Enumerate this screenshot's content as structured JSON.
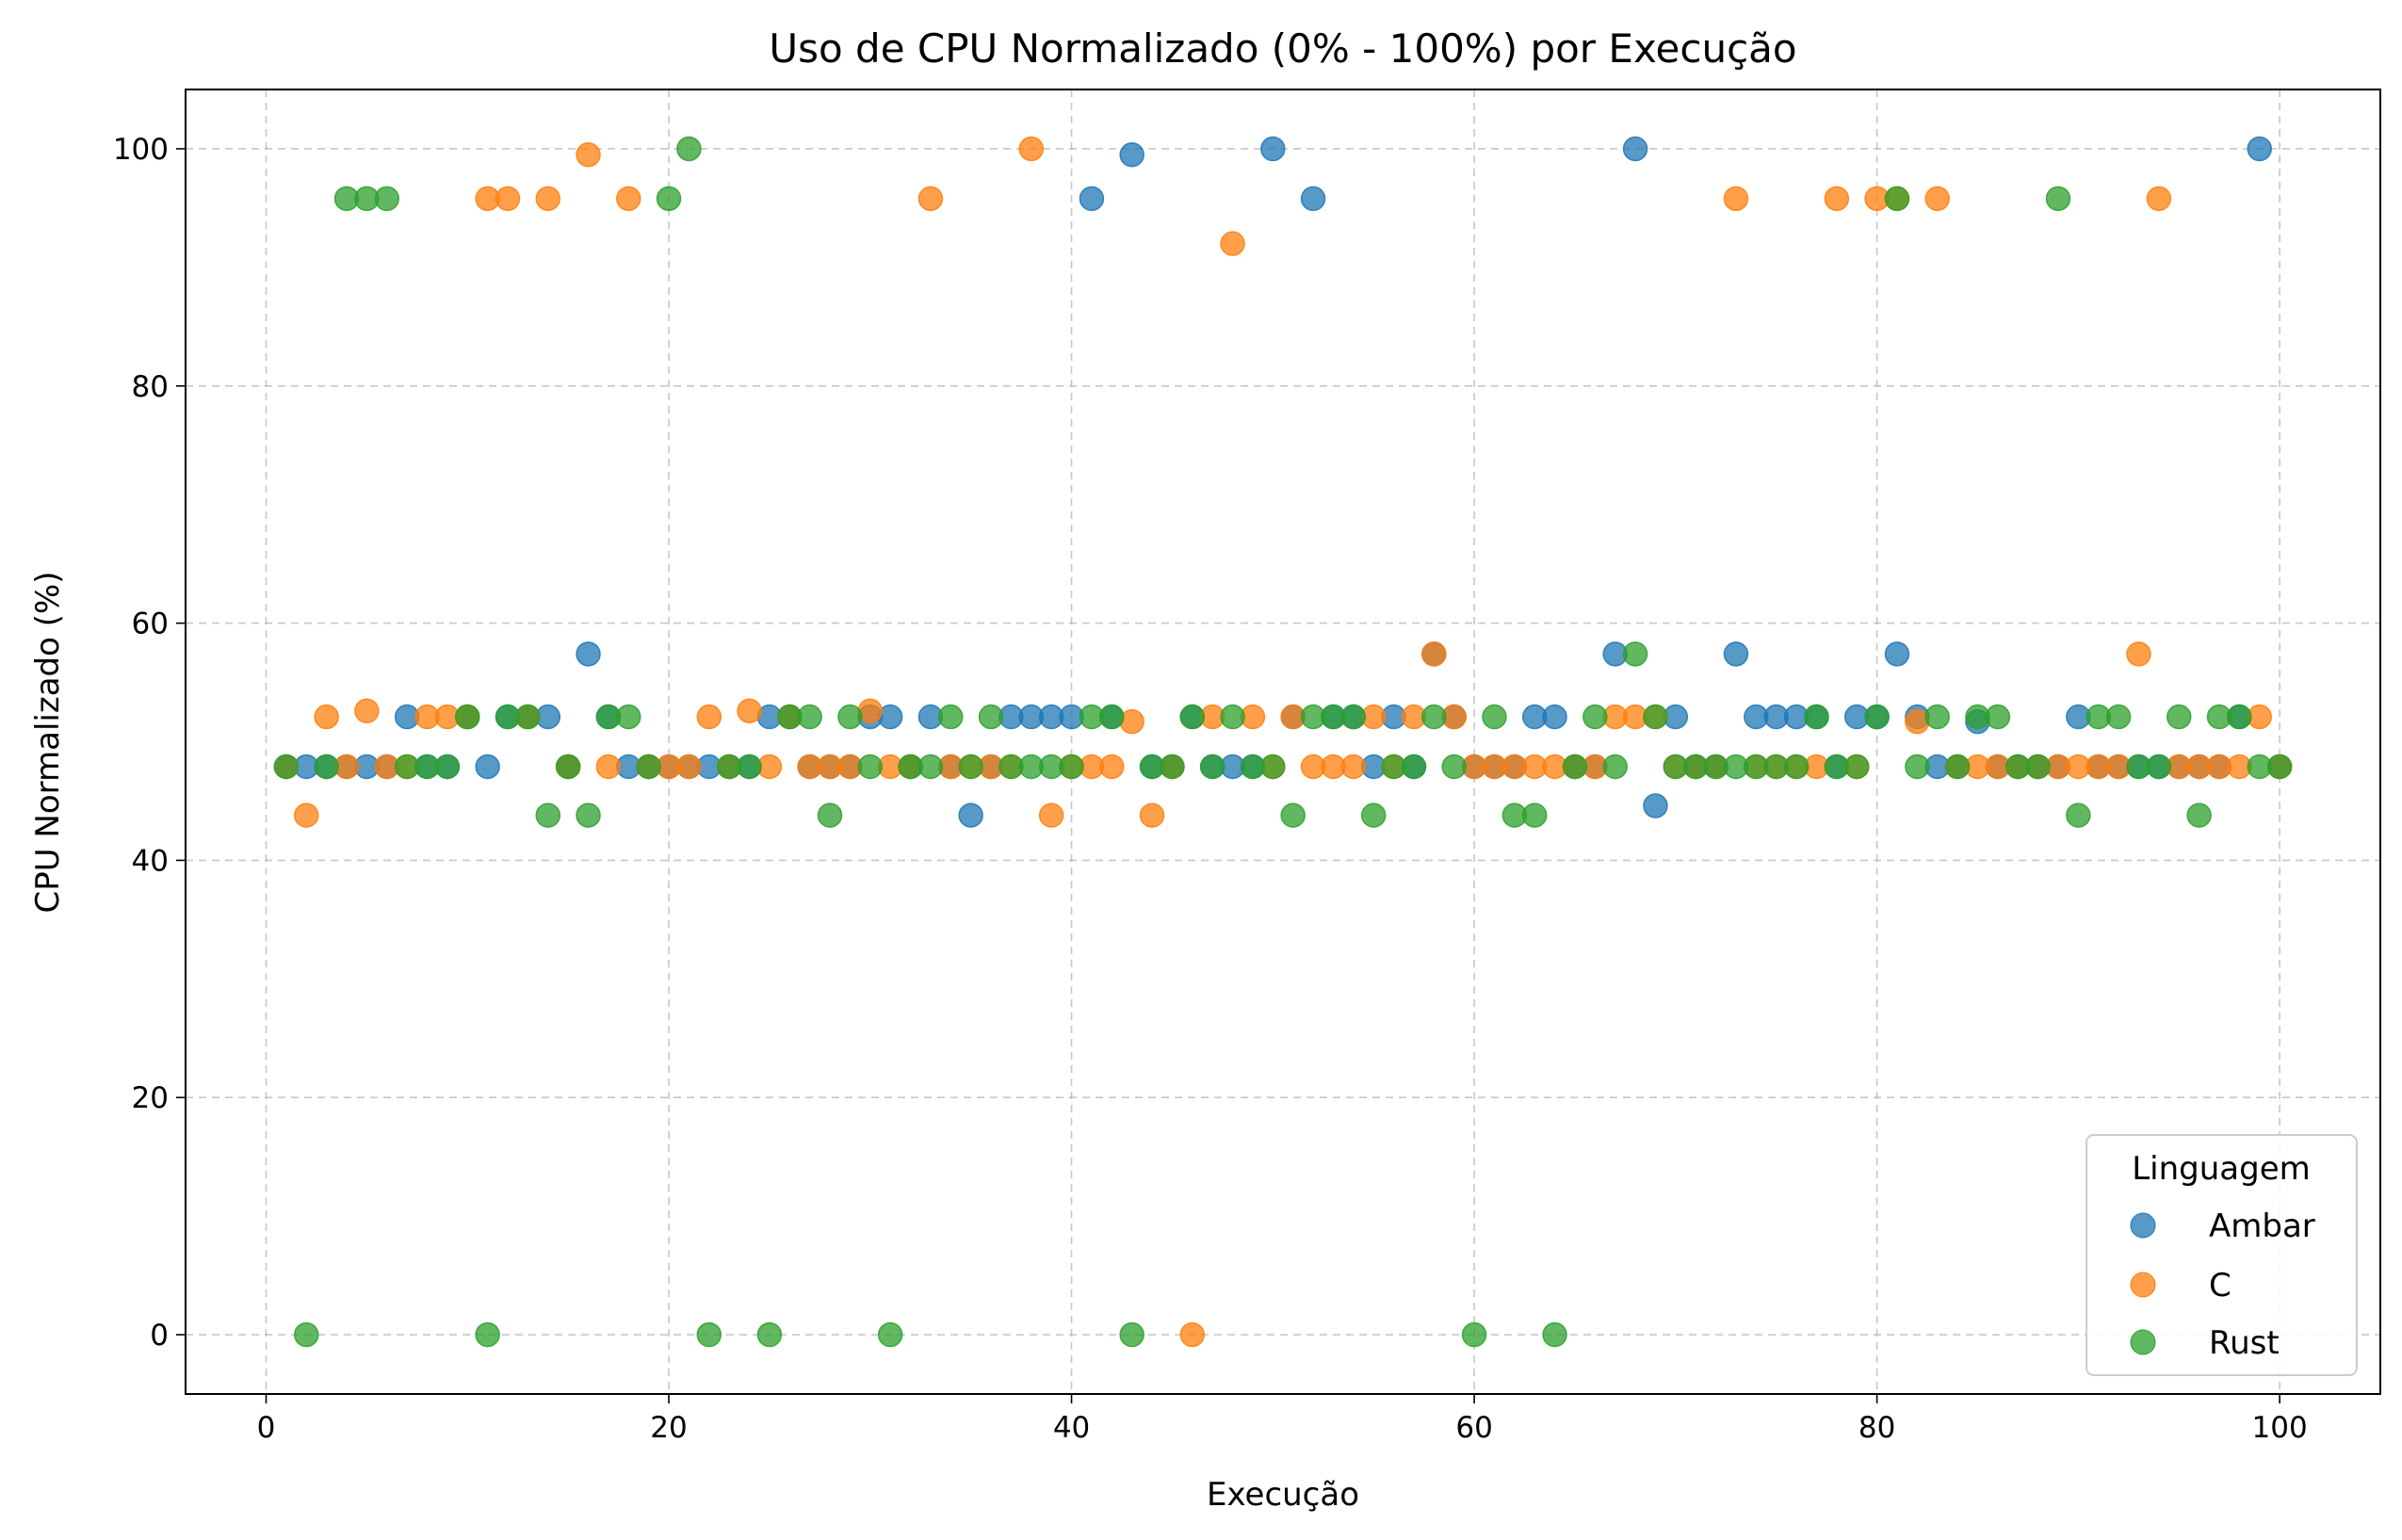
{
  "chart_data": {
    "type": "scatter",
    "title": "Uso de CPU Normalizado (0% - 100%) por Execução",
    "xlabel": "Execução",
    "ylabel": "CPU Normalizado (%)",
    "xlim": [
      -4,
      105
    ],
    "ylim": [
      -5,
      105
    ],
    "xticks": [
      0,
      20,
      40,
      60,
      80,
      100
    ],
    "yticks": [
      0,
      20,
      40,
      60,
      80,
      100
    ],
    "grid": true,
    "legend": {
      "title": "Linguagem",
      "placement": "lower-right"
    },
    "series": [
      {
        "name": "Ambar",
        "color": "#1f77b4",
        "points": [
          [
            1,
            47.9
          ],
          [
            2,
            47.9
          ],
          [
            3,
            47.9
          ],
          [
            4,
            47.9
          ],
          [
            5,
            47.9
          ],
          [
            6,
            47.9
          ],
          [
            7,
            52.1
          ],
          [
            8,
            47.9
          ],
          [
            9,
            47.9
          ],
          [
            10,
            52.1
          ],
          [
            11,
            47.9
          ],
          [
            12,
            52.1
          ],
          [
            13,
            52.1
          ],
          [
            14,
            52.1
          ],
          [
            15,
            47.9
          ],
          [
            16,
            57.4
          ],
          [
            17,
            52.1
          ],
          [
            18,
            47.9
          ],
          [
            19,
            47.9
          ],
          [
            20,
            47.9
          ],
          [
            21,
            47.9
          ],
          [
            22,
            47.9
          ],
          [
            23,
            47.9
          ],
          [
            24,
            47.9
          ],
          [
            25,
            52.1
          ],
          [
            26,
            52.1
          ],
          [
            27,
            47.9
          ],
          [
            28,
            47.9
          ],
          [
            29,
            47.9
          ],
          [
            30,
            52.1
          ],
          [
            31,
            52.1
          ],
          [
            32,
            47.9
          ],
          [
            33,
            52.1
          ],
          [
            34,
            47.9
          ],
          [
            35,
            43.8
          ],
          [
            36,
            47.9
          ],
          [
            37,
            52.1
          ],
          [
            38,
            52.1
          ],
          [
            39,
            52.1
          ],
          [
            40,
            52.1
          ],
          [
            41,
            95.8
          ],
          [
            42,
            52.1
          ],
          [
            43,
            99.5
          ],
          [
            44,
            47.9
          ],
          [
            45,
            47.9
          ],
          [
            46,
            52.1
          ],
          [
            47,
            47.9
          ],
          [
            48,
            47.9
          ],
          [
            49,
            47.9
          ],
          [
            50,
            100
          ],
          [
            51,
            52.1
          ],
          [
            52,
            95.8
          ],
          [
            53,
            52.1
          ],
          [
            54,
            52.1
          ],
          [
            55,
            47.9
          ],
          [
            56,
            52.1
          ],
          [
            57,
            47.9
          ],
          [
            58,
            57.4
          ],
          [
            59,
            52.1
          ],
          [
            60,
            47.9
          ],
          [
            61,
            47.9
          ],
          [
            62,
            47.9
          ],
          [
            63,
            52.1
          ],
          [
            64,
            52.1
          ],
          [
            65,
            47.9
          ],
          [
            66,
            47.9
          ],
          [
            67,
            57.4
          ],
          [
            68,
            100
          ],
          [
            69,
            44.6
          ],
          [
            70,
            52.1
          ],
          [
            71,
            47.9
          ],
          [
            72,
            47.9
          ],
          [
            73,
            57.4
          ],
          [
            74,
            52.1
          ],
          [
            75,
            52.1
          ],
          [
            76,
            52.1
          ],
          [
            77,
            52.1
          ],
          [
            78,
            47.9
          ],
          [
            79,
            52.1
          ],
          [
            80,
            52.1
          ],
          [
            81,
            57.4
          ],
          [
            82,
            52.1
          ],
          [
            83,
            47.9
          ],
          [
            84,
            47.9
          ],
          [
            85,
            51.7
          ],
          [
            86,
            47.9
          ],
          [
            87,
            47.9
          ],
          [
            88,
            47.9
          ],
          [
            89,
            47.9
          ],
          [
            90,
            52.1
          ],
          [
            91,
            47.9
          ],
          [
            92,
            47.9
          ],
          [
            93,
            47.9
          ],
          [
            94,
            47.9
          ],
          [
            95,
            47.9
          ],
          [
            96,
            47.9
          ],
          [
            97,
            47.9
          ],
          [
            98,
            52.1
          ],
          [
            99,
            100
          ],
          [
            100,
            47.9
          ]
        ]
      },
      {
        "name": "C",
        "color": "#ff7f0e",
        "points": [
          [
            1,
            47.9
          ],
          [
            2,
            43.8
          ],
          [
            3,
            52.1
          ],
          [
            4,
            47.9
          ],
          [
            5,
            52.6
          ],
          [
            6,
            47.9
          ],
          [
            7,
            47.9
          ],
          [
            8,
            52.1
          ],
          [
            9,
            52.1
          ],
          [
            10,
            52.1
          ],
          [
            11,
            95.8
          ],
          [
            12,
            95.8
          ],
          [
            13,
            52.1
          ],
          [
            14,
            95.8
          ],
          [
            15,
            47.9
          ],
          [
            16,
            99.5
          ],
          [
            17,
            47.9
          ],
          [
            18,
            95.8
          ],
          [
            19,
            47.9
          ],
          [
            20,
            47.9
          ],
          [
            21,
            47.9
          ],
          [
            22,
            52.1
          ],
          [
            23,
            47.9
          ],
          [
            24,
            52.6
          ],
          [
            25,
            47.9
          ],
          [
            26,
            52.1
          ],
          [
            27,
            47.9
          ],
          [
            28,
            47.9
          ],
          [
            29,
            47.9
          ],
          [
            30,
            52.6
          ],
          [
            31,
            47.9
          ],
          [
            32,
            47.9
          ],
          [
            33,
            95.8
          ],
          [
            34,
            47.9
          ],
          [
            35,
            47.9
          ],
          [
            36,
            47.9
          ],
          [
            37,
            47.9
          ],
          [
            38,
            100
          ],
          [
            39,
            43.8
          ],
          [
            40,
            47.9
          ],
          [
            41,
            47.9
          ],
          [
            42,
            47.9
          ],
          [
            43,
            51.7
          ],
          [
            44,
            43.8
          ],
          [
            45,
            47.9
          ],
          [
            46,
            0
          ],
          [
            47,
            52.1
          ],
          [
            48,
            92
          ],
          [
            49,
            52.1
          ],
          [
            50,
            47.9
          ],
          [
            51,
            52.1
          ],
          [
            52,
            47.9
          ],
          [
            53,
            47.9
          ],
          [
            54,
            47.9
          ],
          [
            55,
            52.1
          ],
          [
            56,
            47.9
          ],
          [
            57,
            52.1
          ],
          [
            58,
            57.4
          ],
          [
            59,
            52.1
          ],
          [
            60,
            47.9
          ],
          [
            61,
            47.9
          ],
          [
            62,
            47.9
          ],
          [
            63,
            47.9
          ],
          [
            64,
            47.9
          ],
          [
            65,
            47.9
          ],
          [
            66,
            47.9
          ],
          [
            67,
            52.1
          ],
          [
            68,
            52.1
          ],
          [
            69,
            52.1
          ],
          [
            70,
            47.9
          ],
          [
            71,
            47.9
          ],
          [
            72,
            47.9
          ],
          [
            73,
            95.8
          ],
          [
            74,
            47.9
          ],
          [
            75,
            47.9
          ],
          [
            76,
            47.9
          ],
          [
            77,
            47.9
          ],
          [
            78,
            95.8
          ],
          [
            79,
            47.9
          ],
          [
            80,
            95.8
          ],
          [
            81,
            95.8
          ],
          [
            82,
            51.7
          ],
          [
            83,
            95.8
          ],
          [
            84,
            47.9
          ],
          [
            85,
            47.9
          ],
          [
            86,
            47.9
          ],
          [
            87,
            47.9
          ],
          [
            88,
            47.9
          ],
          [
            89,
            47.9
          ],
          [
            90,
            47.9
          ],
          [
            91,
            47.9
          ],
          [
            92,
            47.9
          ],
          [
            93,
            57.4
          ],
          [
            94,
            95.8
          ],
          [
            95,
            47.9
          ],
          [
            96,
            47.9
          ],
          [
            97,
            47.9
          ],
          [
            98,
            47.9
          ],
          [
            99,
            52.1
          ],
          [
            100,
            47.9
          ]
        ]
      },
      {
        "name": "Rust",
        "color": "#2ca02c",
        "points": [
          [
            1,
            47.9
          ],
          [
            2,
            0
          ],
          [
            3,
            47.9
          ],
          [
            4,
            95.8
          ],
          [
            5,
            95.8
          ],
          [
            6,
            95.8
          ],
          [
            7,
            47.9
          ],
          [
            8,
            47.9
          ],
          [
            9,
            47.9
          ],
          [
            10,
            52.1
          ],
          [
            11,
            0
          ],
          [
            12,
            52.1
          ],
          [
            13,
            52.1
          ],
          [
            14,
            43.8
          ],
          [
            15,
            47.9
          ],
          [
            16,
            43.8
          ],
          [
            17,
            52.1
          ],
          [
            18,
            52.1
          ],
          [
            19,
            47.9
          ],
          [
            20,
            95.8
          ],
          [
            21,
            100
          ],
          [
            22,
            0
          ],
          [
            23,
            47.9
          ],
          [
            24,
            47.9
          ],
          [
            25,
            0
          ],
          [
            26,
            52.1
          ],
          [
            27,
            52.1
          ],
          [
            28,
            43.8
          ],
          [
            29,
            52.1
          ],
          [
            30,
            47.9
          ],
          [
            31,
            0
          ],
          [
            32,
            47.9
          ],
          [
            33,
            47.9
          ],
          [
            34,
            52.1
          ],
          [
            35,
            47.9
          ],
          [
            36,
            52.1
          ],
          [
            37,
            47.9
          ],
          [
            38,
            47.9
          ],
          [
            39,
            47.9
          ],
          [
            40,
            47.9
          ],
          [
            41,
            52.1
          ],
          [
            42,
            52.1
          ],
          [
            43,
            0
          ],
          [
            44,
            47.9
          ],
          [
            45,
            47.9
          ],
          [
            46,
            52.1
          ],
          [
            47,
            47.9
          ],
          [
            48,
            52.1
          ],
          [
            49,
            47.9
          ],
          [
            50,
            47.9
          ],
          [
            51,
            43.8
          ],
          [
            52,
            52.1
          ],
          [
            53,
            52.1
          ],
          [
            54,
            52.1
          ],
          [
            55,
            43.8
          ],
          [
            56,
            47.9
          ],
          [
            57,
            47.9
          ],
          [
            58,
            52.1
          ],
          [
            59,
            47.9
          ],
          [
            60,
            0
          ],
          [
            61,
            52.1
          ],
          [
            62,
            43.8
          ],
          [
            63,
            43.8
          ],
          [
            64,
            0
          ],
          [
            65,
            47.9
          ],
          [
            66,
            52.1
          ],
          [
            67,
            47.9
          ],
          [
            68,
            57.4
          ],
          [
            69,
            52.1
          ],
          [
            70,
            47.9
          ],
          [
            71,
            47.9
          ],
          [
            72,
            47.9
          ],
          [
            73,
            47.9
          ],
          [
            74,
            47.9
          ],
          [
            75,
            47.9
          ],
          [
            76,
            47.9
          ],
          [
            77,
            52.1
          ],
          [
            78,
            47.9
          ],
          [
            79,
            47.9
          ],
          [
            80,
            52.1
          ],
          [
            81,
            95.8
          ],
          [
            82,
            47.9
          ],
          [
            83,
            52.1
          ],
          [
            84,
            47.9
          ],
          [
            85,
            52.1
          ],
          [
            86,
            52.1
          ],
          [
            87,
            47.9
          ],
          [
            88,
            47.9
          ],
          [
            89,
            95.8
          ],
          [
            90,
            43.8
          ],
          [
            91,
            52.1
          ],
          [
            92,
            52.1
          ],
          [
            93,
            47.9
          ],
          [
            94,
            47.9
          ],
          [
            95,
            52.1
          ],
          [
            96,
            43.8
          ],
          [
            97,
            52.1
          ],
          [
            98,
            52.1
          ],
          [
            99,
            47.9
          ],
          [
            100,
            47.9
          ]
        ]
      }
    ]
  }
}
